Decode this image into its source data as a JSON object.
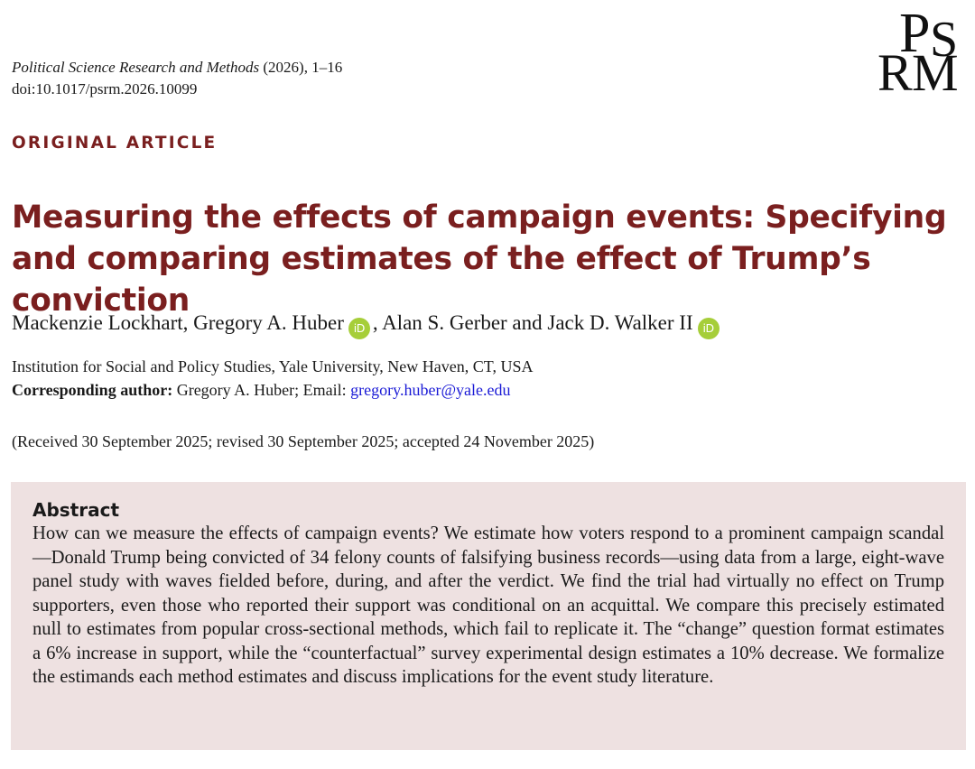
{
  "journal": {
    "name": "Political Science Research and Methods",
    "meta": " (2026), 1–16",
    "doi": "doi:10.1017/psrm.2026.10099"
  },
  "logo": {
    "letter_1": "P",
    "letter_2": "S",
    "letter_3": "R",
    "letter_4": "M"
  },
  "article_type": "ORIGINAL ARTICLE",
  "title": "Measuring the effects of campaign events: Specifying and comparing estimates of the effect of Trump’s conviction",
  "authors": {
    "part_1": "Mackenzie Lockhart, Gregory A. Huber",
    "part_2": ", Alan S. Gerber and Jack D. Walker II",
    "orcid_label": "iD"
  },
  "affiliation": "Institution for Social and Policy Studies, Yale University, New Haven, CT, USA",
  "corresponding": {
    "label": "Corresponding author:",
    "text": " Gregory A. Huber; Email: ",
    "email": "gregory.huber@yale.edu"
  },
  "received": "(Received 30 September 2025; revised 30 September 2025; accepted 24 November 2025)",
  "abstract": {
    "heading": "Abstract",
    "text": "How can we measure the effects of campaign events? We estimate how voters respond to a prominent campaign scandal—Donald Trump being convicted of 34 felony counts of falsifying business records—using data from a large, eight-wave panel study with waves fielded before, during, and after the verdict. We find the trial had virtually no effect on Trump supporters, even those who reported their support was conditional on an acquittal. We compare this precisely estimated null to estimates from popular cross-sectional methods, which fail to replicate it. The “change” question format estimates a 6% increase in support, while the “counterfactual” survey experimental design estimates a 10% decrease. We formalize the estimands each method estimates and discuss implications for the event study literature."
  },
  "colors": {
    "accent": "#7a1f1f",
    "abstract_bg": "#eee1e1",
    "link": "#1a1ad6",
    "orcid": "#a6ce39"
  }
}
